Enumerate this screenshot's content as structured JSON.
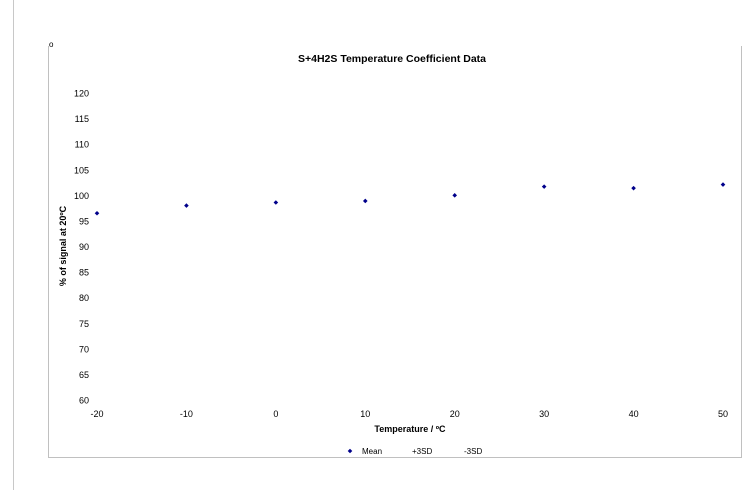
{
  "stray_mark": "o",
  "chart_data": {
    "type": "scatter",
    "title": "S+4H2S Temperature Coefficient Data",
    "xlabel": "Temperature / ºC",
    "ylabel": "% of signal at 20ºC",
    "xlim": [
      -20,
      50
    ],
    "ylim": [
      60,
      120
    ],
    "xticks": [
      -20,
      -10,
      0,
      10,
      20,
      30,
      40,
      50
    ],
    "yticks": [
      60,
      65,
      70,
      75,
      80,
      85,
      90,
      95,
      100,
      105,
      110,
      115,
      120
    ],
    "grid": false,
    "legend_position": "bottom",
    "series": [
      {
        "name": "Mean",
        "marker": "diamond",
        "color": "#00008B",
        "x": [
          -20,
          -10,
          0,
          10,
          20,
          30,
          40,
          50
        ],
        "y": [
          96.5,
          98,
          98.6,
          98.9,
          100,
          101.7,
          101.4,
          102.1
        ]
      },
      {
        "name": "+3SD",
        "x": [],
        "y": []
      },
      {
        "name": "-3SD",
        "x": [],
        "y": []
      }
    ]
  }
}
